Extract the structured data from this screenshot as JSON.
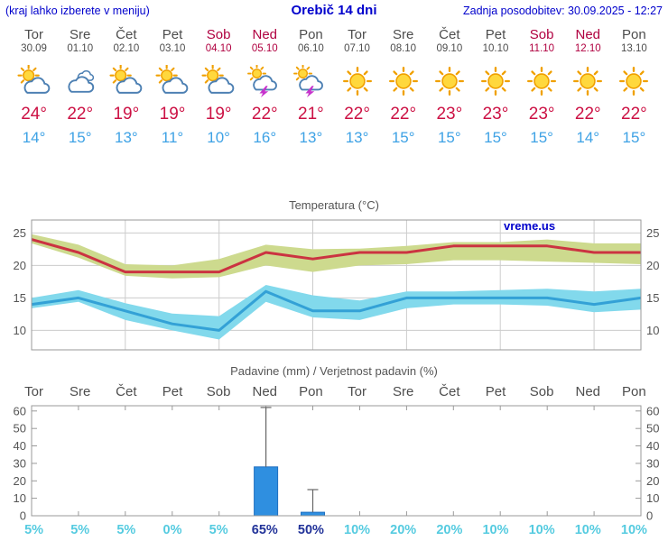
{
  "header": {
    "left_note": "(kraj lahko izberete v meniju)",
    "title": "Orebič 14 dni",
    "last_update": "Zadnja posodobitev: 30.09.2025 - 12:27"
  },
  "colors": {
    "link_blue": "#0000cc",
    "weekday": "#4d4d4d",
    "weekend": "#b00040",
    "high_temp_text": "#cc1144",
    "low_temp_text": "#3ea2e5",
    "line_high": "#cb3341",
    "line_low": "#33a1d6",
    "band_high": "#cdda8e",
    "band_low": "#82d9ec",
    "bar": "#2f8fe0",
    "bar_border": "#1f6fc0",
    "whisker": "#666666",
    "prob": "#55cbe0",
    "prob_strong": "#223399",
    "grid": "#cccccc",
    "axis": "#999999",
    "tick_label": "#555555",
    "sun": "#ffd83d",
    "sun_stroke": "#f0a000",
    "cloud_fill": "#ffffff",
    "cloud_stroke": "#4d80b3",
    "bolt": "#c633cc"
  },
  "days": [
    {
      "name": "Tor",
      "date": "30.09",
      "weekend": false,
      "icon": "partly",
      "high": "24°",
      "low": "14°",
      "prob": "5%",
      "prob_strong": false
    },
    {
      "name": "Sre",
      "date": "01.10",
      "weekend": false,
      "icon": "cloudy",
      "high": "22°",
      "low": "15°",
      "prob": "5%",
      "prob_strong": false
    },
    {
      "name": "Čet",
      "date": "02.10",
      "weekend": false,
      "icon": "partly",
      "high": "19°",
      "low": "13°",
      "prob": "5%",
      "prob_strong": false
    },
    {
      "name": "Pet",
      "date": "03.10",
      "weekend": false,
      "icon": "partly",
      "high": "19°",
      "low": "11°",
      "prob": "0%",
      "prob_strong": false
    },
    {
      "name": "Sob",
      "date": "04.10",
      "weekend": true,
      "icon": "partly",
      "high": "19°",
      "low": "10°",
      "prob": "5%",
      "prob_strong": false
    },
    {
      "name": "Ned",
      "date": "05.10",
      "weekend": true,
      "icon": "storm",
      "high": "22°",
      "low": "16°",
      "prob": "65%",
      "prob_strong": true
    },
    {
      "name": "Pon",
      "date": "06.10",
      "weekend": false,
      "icon": "storm",
      "high": "21°",
      "low": "13°",
      "prob": "50%",
      "prob_strong": true
    },
    {
      "name": "Tor",
      "date": "07.10",
      "weekend": false,
      "icon": "sunny",
      "high": "22°",
      "low": "13°",
      "prob": "10%",
      "prob_strong": false
    },
    {
      "name": "Sre",
      "date": "08.10",
      "weekend": false,
      "icon": "sunny",
      "high": "22°",
      "low": "15°",
      "prob": "20%",
      "prob_strong": false
    },
    {
      "name": "Čet",
      "date": "09.10",
      "weekend": false,
      "icon": "sunny",
      "high": "23°",
      "low": "15°",
      "prob": "20%",
      "prob_strong": false
    },
    {
      "name": "Pet",
      "date": "10.10",
      "weekend": false,
      "icon": "sunny",
      "high": "23°",
      "low": "15°",
      "prob": "10%",
      "prob_strong": false
    },
    {
      "name": "Sob",
      "date": "11.10",
      "weekend": true,
      "icon": "sunny",
      "high": "23°",
      "low": "15°",
      "prob": "10%",
      "prob_strong": false
    },
    {
      "name": "Ned",
      "date": "12.10",
      "weekend": true,
      "icon": "sunny",
      "high": "22°",
      "low": "14°",
      "prob": "10%",
      "prob_strong": false
    },
    {
      "name": "Pon",
      "date": "13.10",
      "weekend": false,
      "icon": "sunny",
      "high": "22°",
      "low": "15°",
      "prob": "10%",
      "prob_strong": false
    }
  ],
  "chart_data": [
    {
      "type": "line",
      "title": "Temperatura (°C)",
      "watermark": "vreme.us",
      "categories": [
        "30.09",
        "01.10",
        "02.10",
        "03.10",
        "04.10",
        "05.10",
        "06.10",
        "07.10",
        "08.10",
        "09.10",
        "10.10",
        "11.10",
        "12.10",
        "13.10"
      ],
      "ylim": [
        7,
        27
      ],
      "yticks": [
        10,
        15,
        20,
        25
      ],
      "grid_day_indices": [
        2,
        4,
        6,
        8,
        10,
        12
      ],
      "series": [
        {
          "name": "max-temp",
          "color_key": "line_high",
          "values": [
            24,
            22,
            19,
            19,
            19,
            22,
            21,
            22,
            22,
            23,
            23,
            23,
            22,
            22
          ]
        },
        {
          "name": "min-temp",
          "color_key": "line_low",
          "values": [
            14,
            15,
            13,
            11,
            10,
            16,
            13,
            13,
            15,
            15,
            15,
            15,
            14,
            15
          ]
        }
      ],
      "bands": [
        {
          "name": "max-range",
          "color_key": "band_high",
          "upper": [
            24.8,
            23.2,
            20.2,
            20.0,
            21.0,
            23.2,
            22.5,
            22.6,
            23.0,
            23.6,
            23.6,
            24.0,
            23.4,
            23.4
          ],
          "lower": [
            23.4,
            21.2,
            18.4,
            18.0,
            18.2,
            20.0,
            19.0,
            20.0,
            20.2,
            20.8,
            20.8,
            20.6,
            20.4,
            20.2
          ]
        },
        {
          "name": "min-range",
          "color_key": "band_low",
          "upper": [
            15.0,
            16.2,
            14.2,
            12.6,
            12.2,
            17.0,
            15.4,
            14.6,
            16.0,
            16.0,
            16.2,
            16.4,
            16.0,
            16.4
          ],
          "lower": [
            13.4,
            14.4,
            11.6,
            10.0,
            8.6,
            14.4,
            12.0,
            11.6,
            13.4,
            14.0,
            14.0,
            13.8,
            12.8,
            13.2
          ]
        }
      ]
    },
    {
      "type": "bar",
      "title": "Padavine (mm) / Verjetnost padavin (%)",
      "categories": [
        "Tor",
        "Sre",
        "Čet",
        "Pet",
        "Sob",
        "Ned",
        "Pon",
        "Tor",
        "Sre",
        "Čet",
        "Pet",
        "Sob",
        "Ned",
        "Pon"
      ],
      "ylim": [
        0,
        63
      ],
      "yticks": [
        0,
        10,
        20,
        30,
        40,
        50,
        60
      ],
      "values": [
        0,
        0,
        0,
        0,
        0,
        28,
        2,
        0,
        0,
        0,
        0,
        0,
        0,
        0
      ],
      "whisker_max": [
        0,
        0,
        0,
        0,
        0,
        62,
        15,
        0,
        0,
        0,
        0,
        0,
        0,
        0
      ],
      "probabilities": [
        "5%",
        "5%",
        "5%",
        "0%",
        "5%",
        "65%",
        "50%",
        "10%",
        "20%",
        "20%",
        "10%",
        "10%",
        "10%",
        "10%"
      ]
    }
  ]
}
